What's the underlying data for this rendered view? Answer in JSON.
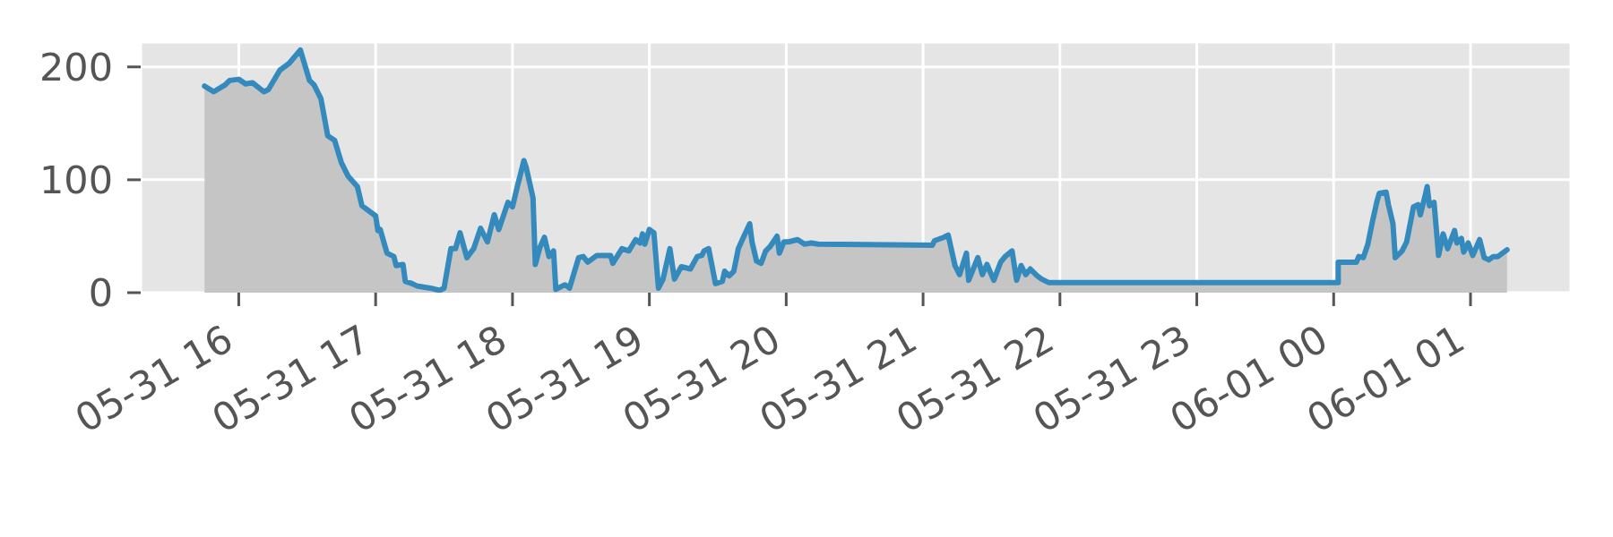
{
  "chart_data": {
    "type": "area",
    "color": "#348abd",
    "x": [
      "--05-31T15:45",
      "--05-31T15:49",
      "--05-31T15:54",
      "--05-31T15:56",
      "--05-31T16:00",
      "--05-31T16:03",
      "--05-31T16:06",
      "--05-31T16:11",
      "--05-31T16:13",
      "--05-31T16:18",
      "--05-31T16:22",
      "--05-31T16:27",
      "--05-31T16:31",
      "--05-31T16:33",
      "--05-31T16:36",
      "--05-31T16:39",
      "--05-31T16:42",
      "--05-31T16:45",
      "--05-31T16:48",
      "--05-31T16:52",
      "--05-31T16:54",
      "--05-31T17:00",
      "--05-31T17:01",
      "--05-31T17:02",
      "--05-31T17:05",
      "--05-31T17:08",
      "--05-31T17:09",
      "--05-31T17:12",
      "--05-31T17:13",
      "--05-31T17:16",
      "--05-31T17:18",
      "--05-31T17:24",
      "--05-31T17:28",
      "--05-31T17:30",
      "--05-31T17:33",
      "--05-31T17:35",
      "--05-31T17:37",
      "--05-31T17:40",
      "--05-31T17:43",
      "--05-31T17:46",
      "--05-31T17:49",
      "--05-31T17:52",
      "--05-31T17:54",
      "--05-31T17:58",
      "--05-31T18:00",
      "--05-31T18:02",
      "--05-31T18:05",
      "--05-31T18:06",
      "--05-31T18:09",
      "--05-31T18:10",
      "--05-31T18:12",
      "--05-31T18:14",
      "--05-31T18:16",
      "--05-31T18:18",
      "--05-31T18:19",
      "--05-31T18:23",
      "--05-31T18:25",
      "--05-31T18:29",
      "--05-31T18:31",
      "--05-31T18:33",
      "--05-31T18:37",
      "--05-31T18:43",
      "--05-31T18:44",
      "--05-31T18:48",
      "--05-31T18:51",
      "--05-31T18:54",
      "--05-31T18:56",
      "--05-31T18:57",
      "--05-31T18:58",
      "--05-31T19:00",
      "--05-31T19:02",
      "--05-31T19:04",
      "--05-31T19:06",
      "--05-31T19:09",
      "--05-31T19:11",
      "--05-31T19:14",
      "--05-31T19:18",
      "--05-31T19:21",
      "--05-31T19:23",
      "--05-31T19:24",
      "--05-31T19:26",
      "--05-31T19:29",
      "--05-31T19:32",
      "--05-31T19:33",
      "--05-31T19:35",
      "--05-31T19:37",
      "--05-31T19:39",
      "--05-31T19:41",
      "--05-31T19:44",
      "--05-31T19:45",
      "--05-31T19:47",
      "--05-31T19:49",
      "--05-31T19:51",
      "--05-31T19:53",
      "--05-31T19:56",
      "--05-31T19:57",
      "--05-31T19:59",
      "--05-31T20:01",
      "--05-31T20:05",
      "--05-31T20:08",
      "--05-31T20:11",
      "--05-31T20:14",
      "--05-31T21:04",
      "--05-31T21:05",
      "--05-31T21:09",
      "--05-31T21:11",
      "--05-31T21:14",
      "--05-31T21:16",
      "--05-31T21:19",
      "--05-31T21:20",
      "--05-31T21:24",
      "--05-31T21:26",
      "--05-31T21:28",
      "--05-31T21:31",
      "--05-31T21:34",
      "--05-31T21:36",
      "--05-31T21:39",
      "--05-31T21:41",
      "--05-31T21:43",
      "--05-31T21:45",
      "--05-31T21:47",
      "--05-31T21:50",
      "--05-31T21:52",
      "--05-31T21:55",
      "--06-01T00:02",
      "--06-01T00:02",
      "--06-01T00:10",
      "--06-01T00:11",
      "--06-01T00:13",
      "--06-01T00:15",
      "--06-01T00:17",
      "--06-01T00:19",
      "--06-01T00:20",
      "--06-01T00:23",
      "--06-01T00:24",
      "--06-01T00:26",
      "--06-01T00:27",
      "--06-01T00:30",
      "--06-01T00:32",
      "--06-01T00:35",
      "--06-01T00:37",
      "--06-01T00:38",
      "--06-01T00:40",
      "--06-01T00:41",
      "--06-01T00:42",
      "--06-01T00:44",
      "--06-01T00:46",
      "--06-01T00:48",
      "--06-01T00:50",
      "--06-01T00:53",
      "--06-01T00:54",
      "--06-01T00:56",
      "--06-01T00:57",
      "--06-01T00:59",
      "--06-01T01:01",
      "--06-01T01:04",
      "--06-01T01:06",
      "--06-01T01:08",
      "--06-01T01:10",
      "--06-01T01:12",
      "--06-01T01:14",
      "--06-01T01:16"
    ],
    "values": [
      183,
      178,
      184,
      188,
      189,
      185,
      186,
      178,
      180,
      197,
      203,
      215,
      188,
      184,
      172,
      139,
      135,
      115,
      103,
      94,
      77,
      68,
      55,
      56,
      35,
      32,
      24,
      25,
      10,
      8,
      6,
      4,
      2,
      4,
      39,
      39,
      53,
      31,
      39,
      57,
      45,
      69,
      56,
      80,
      76,
      93,
      117,
      111,
      84,
      25,
      40,
      49,
      32,
      37,
      3,
      7,
      4,
      31,
      32,
      27,
      33,
      33,
      26,
      39,
      37,
      47,
      44,
      52,
      43,
      56,
      53,
      4,
      12,
      39,
      12,
      23,
      21,
      32,
      33,
      37,
      39,
      8,
      10,
      19,
      15,
      19,
      39,
      48,
      61,
      45,
      28,
      26,
      37,
      41,
      50,
      35,
      45,
      45,
      47,
      43,
      44,
      43,
      42,
      46,
      49,
      51,
      24,
      16,
      35,
      11,
      31,
      16,
      25,
      11,
      27,
      32,
      37,
      11,
      24,
      16,
      21,
      15,
      12,
      9,
      9,
      27,
      27,
      32,
      31,
      43,
      63,
      81,
      88,
      89,
      78,
      61,
      31,
      37,
      45,
      76,
      78,
      69,
      85,
      94,
      77,
      80,
      33,
      52,
      39,
      55,
      44,
      48,
      36,
      44,
      33,
      47,
      31,
      29,
      32,
      32,
      35,
      38
    ],
    "xlim": [
      "--05-31T15:17",
      "--06-01T01:44"
    ],
    "xticks": [
      {
        "value": "--05-31T16:00",
        "label": "05-31 16"
      },
      {
        "value": "--05-31T17:00",
        "label": "05-31 17"
      },
      {
        "value": "--05-31T18:00",
        "label": "05-31 18"
      },
      {
        "value": "--05-31T19:00",
        "label": "05-31 19"
      },
      {
        "value": "--05-31T20:00",
        "label": "05-31 20"
      },
      {
        "value": "--05-31T21:00",
        "label": "05-31 21"
      },
      {
        "value": "--05-31T22:00",
        "label": "05-31 22"
      },
      {
        "value": "--05-31T23:00",
        "label": "05-31 23"
      },
      {
        "value": "--06-01T00:00",
        "label": "06-01 00"
      },
      {
        "value": "--06-01T01:00",
        "label": "06-01 01"
      }
    ],
    "ylim": [
      0,
      222
    ],
    "yticks": [
      0,
      100,
      200
    ],
    "grid": true
  }
}
